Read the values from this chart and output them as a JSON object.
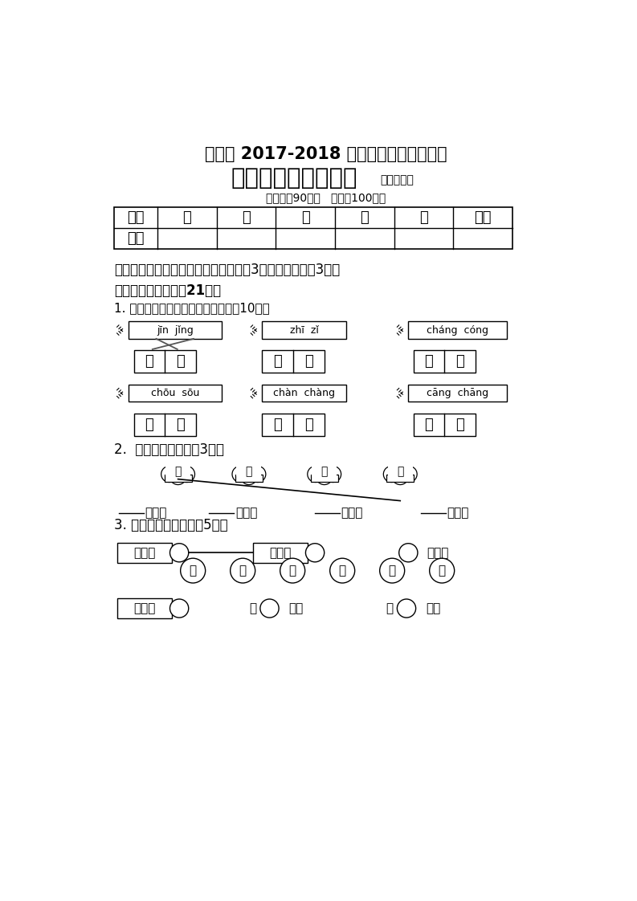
{
  "title1": "公安县 2017-2018 学年度上学期期末考试",
  "title2": "小学二年级语文试题",
  "title2_small": "（人教版）",
  "title3": "（时间：90分钟   总分：100分）",
  "table_headers": [
    "题号",
    "一",
    "二",
    "三",
    "四",
    "五",
    "总分"
  ],
  "table_row1": "评分",
  "section1": "一、把字写得漂亮、整洁，你就能得到3分的奖励哦！（3分）",
  "section2": "二、趣味连连看。（21分）",
  "sub1": "1. 把汉字和正确的音节连在一起。（10分）",
  "box1_top": "jīn  jǐng",
  "box2_top": "zhī  zǐ",
  "box3_top": "cháng  cóng",
  "box1_chars": [
    "培",
    "孖"
  ],
  "box2_chars": [
    "卜",
    "娶"
  ],
  "box3_chars": [
    "乘",
    "巨"
  ],
  "box4_top": "chōu  sōu",
  "box5_top": "chàn  chàng",
  "box6_top": "cāng  chāng",
  "box4_chars": [
    "艘",
    "山"
  ],
  "box5_chars": [
    "副",
    "其"
  ],
  "box6_chars": [
    "伤",
    "螽"
  ],
  "sub2": "2.  照样子连一连。（3分）",
  "cloud_chars": [
    "誌",
    "甲",
    "抚",
    "霎"
  ],
  "blanks": [
    "着肚皮",
    "着衣裳",
    "着尾巴",
    "着眼睛"
  ],
  "sub3": "3. 照样子连成词语。（5分）",
  "word_row1_left": "明小加",
  "word_row1_mid": "宝群乡",
  "word_row1_right": "飞同舞",
  "word_circles1": [
    "虎",
    "卢",
    "凤",
    "凰",
    "色",
    "龙"
  ],
  "word_row2_left": "格召乡",
  "word_row2_mid_pre": "加",
  "word_row2_mid_post": "添翼",
  "word_row2_right_pre": "加",
  "word_row2_right_post": "得水",
  "bg_color": "#ffffff",
  "text_color": "#000000"
}
